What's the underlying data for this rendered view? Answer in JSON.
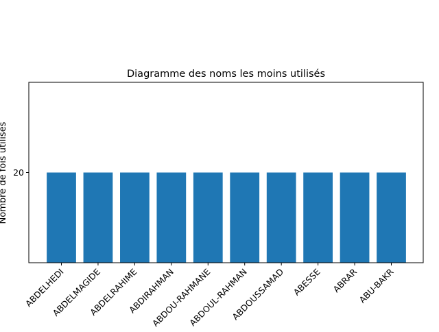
{
  "chart_data": {
    "type": "bar",
    "title": "Diagramme des noms les moins utilisés",
    "xlabel": "",
    "ylabel": "Nombre de fois utilisés",
    "categories": [
      "ABDELHEDI",
      "ABDELMAGIDE",
      "ABDELRAHIME",
      "ABDIRAHMAN",
      "ABDOU-RAHMANE",
      "ABDOUL-RAHMAN",
      "ABDOUSSAMAD",
      "ABESSE",
      "ABRAR",
      "ABU-BAKR"
    ],
    "values": [
      20,
      20,
      20,
      20,
      20,
      20,
      20,
      20,
      20,
      20
    ],
    "ylim": [
      18,
      22
    ],
    "yticks": [
      20
    ],
    "grid": false,
    "colors": {
      "bar": "#1f77b4",
      "axis": "#000000",
      "background": "#ffffff"
    }
  }
}
